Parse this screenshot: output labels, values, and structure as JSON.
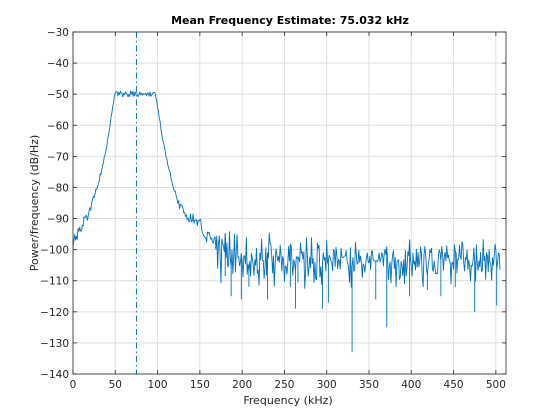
{
  "colors": {
    "series": "#0072bd",
    "grid": "#dfdfdf",
    "axis": "#262626",
    "background": "#ffffff"
  },
  "chart_data": {
    "type": "line",
    "title": "Mean Frequency Estimate: 75.032 kHz",
    "xlabel": "Frequency (kHz)",
    "ylabel": "Power/frequency (dB/Hz)",
    "xlim": [
      0,
      512
    ],
    "ylim": [
      -140,
      -30
    ],
    "xticks": [
      0,
      50,
      100,
      150,
      200,
      250,
      300,
      350,
      400,
      450,
      500
    ],
    "yticks": [
      -140,
      -130,
      -120,
      -110,
      -100,
      -90,
      -80,
      -70,
      -60,
      -50,
      -40,
      -30
    ],
    "grid": true,
    "box": true,
    "series": [
      {
        "x_start": 0,
        "x_step": 1,
        "values": [
          -99.08,
          -97.23,
          -95.15,
          -96.96,
          -95.67,
          -96.72,
          -93.17,
          -94.09,
          -92.79,
          -94.04,
          -94.05,
          -92.13,
          -92.41,
          -89.5,
          -89.79,
          -89.2,
          -88.99,
          -90.58,
          -89.23,
          -87.53,
          -86.52,
          -87.3,
          -85.14,
          -84.12,
          -82.83,
          -83.33,
          -82.23,
          -80.54,
          -80.71,
          -79.85,
          -78.59,
          -78.12,
          -75.64,
          -75.98,
          -74.39,
          -72.95,
          -72.04,
          -70.07,
          -69.43,
          -68.08,
          -66.74,
          -64.52,
          -63.22,
          -61.38,
          -59.75,
          -57.2,
          -56.0,
          -53.86,
          -52.68,
          -50.39,
          -49.62,
          -49.17,
          -49.14,
          -50.55,
          -49.43,
          -50.06,
          -49.04,
          -49.72,
          -49.75,
          -50.89,
          -49.69,
          -50.15,
          -49.28,
          -49.86,
          -49.99,
          -50.82,
          -50.06,
          -50.75,
          -49.05,
          -49.94,
          -49.15,
          -50.69,
          -49.21,
          -50.5,
          -49.38,
          -49.63,
          -50.02,
          -50.78,
          -50.16,
          -49.26,
          -50.19,
          -49.75,
          -50.3,
          -49.76,
          -50.04,
          -49.84,
          -49.81,
          -50.51,
          -49.69,
          -49.65,
          -50.59,
          -49.26,
          -50.66,
          -50.21,
          -49.84,
          -49.43,
          -49.53,
          -49.54,
          -51.05,
          -52.31,
          -54.39,
          -55.4,
          -57.8,
          -58.71,
          -61.36,
          -62.96,
          -64.71,
          -65.57,
          -66.89,
          -68.19,
          -70.27,
          -70.79,
          -72.71,
          -73.7,
          -74.73,
          -75.21,
          -77.18,
          -78.26,
          -79.34,
          -80.6,
          -81.19,
          -81.17,
          -82.79,
          -83.66,
          -85.11,
          -84.25,
          -86.86,
          -85.42,
          -85.59,
          -85.82,
          -86.6,
          -88.19,
          -88.04,
          -89.31,
          -88.79,
          -90.38,
          -89.73,
          -90.88,
          -90.95,
          -88.5,
          -91.03,
          -90.82,
          -88.46,
          -91.55,
          -90.5,
          -90.57,
          -90.29,
          -92.28,
          -90.59,
          -90.87,
          -90.28,
          -90.25,
          -93.08,
          -94.7,
          -95.06,
          -95.59,
          -96.17,
          -96.1,
          -97.61,
          -94.37,
          -94.76,
          -94.43,
          -95.49,
          -96.66,
          -96.26,
          -97.61,
          -97.91,
          -96.3,
          -95.89,
          -99.84,
          -95.63,
          -105.97,
          -98.13,
          -95.53,
          -102.0,
          -110.69,
          -96.51,
          -98.12,
          -98.94,
          -100.63,
          -94.83,
          -102.6,
          -97.82,
          -105.54,
          -104.98,
          -94.21,
          -102.64,
          -105.94,
          -99.93,
          -107.7,
          -102.33,
          -94.97,
          -107.18,
          -100.63,
          -95.16,
          -102.52,
          -102.3,
          -105.15,
          -103.92,
          -101.31,
          -103.75,
          -108.76,
          -102.05,
          -102.05,
          -104.58,
          -96.05,
          -107.92,
          -104.6,
          -106.81,
          -103.77,
          -108.46,
          -101.11,
          -102.84,
          -104.64,
          -108.24,
          -103.28,
          -104.99,
          -99.62,
          -107.61,
          -106.55,
          -111.44,
          -101.09,
          -103.24,
          -96.58,
          -103.47,
          -103.46,
          -109.27,
          -106.12,
          -99.38,
          -108.29,
          -101.04,
          -102.67,
          -94.62,
          -97.91,
          -98.5,
          -102.0,
          -107.51,
          -102.03,
          -111.77,
          -104.93,
          -99.73,
          -101.41,
          -103.55,
          -102.19,
          -104.08,
          -98.54,
          -101.79,
          -106.91,
          -102.2,
          -103.26,
          -110.22,
          -105.19,
          -105.46,
          -107.95,
          -104.23,
          -98.95,
          -103.56,
          -98.26,
          -98.81,
          -104.27,
          -108.29,
          -103.22,
          -104.27,
          -106.97,
          -102.34,
          -102.71,
          -102.24,
          -102.9,
          -103.91,
          -97.91,
          -101.24,
          -100.63,
          -103.08,
          -100.72,
          -112.45,
          -107.55,
          -96.19,
          -101.25,
          -108.55,
          -106.03,
          -102.43,
          -105.84,
          -96.13,
          -104.42,
          -102.88,
          -110.58,
          -104.0,
          -109.38,
          -109.69,
          -97.95,
          -99.57,
          -98.57,
          -108.76,
          -105.58,
          -111.17,
          -104.1,
          -101.0,
          -103.4,
          -102.51,
          -106.82,
          -97.02,
          -104.33,
          -103.22,
          -101.88,
          -102.51,
          -103.66,
          -104.19,
          -106.72,
          -99.91,
          -100.65,
          -105.43,
          -99.2,
          -102.05,
          -106.15,
          -103.11,
          -103.58,
          -106.34,
          -99.58,
          -102.42,
          -102.58,
          -102.38,
          -102.05,
          -101.92,
          -100.32,
          -103.33,
          -104.42,
          -106.29,
          -110.46,
          -99.34,
          -112.12,
          -105.39,
          -102.54,
          -106.96,
          -106.54,
          -97.63,
          -101.96,
          -104.68,
          -104.19,
          -100.16,
          -103.98,
          -102.12,
          -104.01,
          -109.0,
          -104.59,
          -104.95,
          -107.23,
          -104.88,
          -102.53,
          -101.06,
          -104.02,
          -104.21,
          -102.22,
          -106.38,
          -100.37,
          -100.5,
          -103.22,
          -103.57,
          -103.59,
          -104.0,
          -103.55,
          -103.79,
          -102.93,
          -100.99,
          -103.96,
          -103.08,
          -101.05,
          -101.31,
          -105.28,
          -101.32,
          -99.85,
          -101.72,
          -99.12,
          -103.18,
          -109.65,
          -105.54,
          -103.99,
          -110.69,
          -104.43,
          -101.49,
          -100.35,
          -106.13,
          -102.65,
          -111.91,
          -104.3,
          -103.48,
          -103.25,
          -109.54,
          -108.74,
          -103.75,
          -105.1,
          -108.29,
          -103.32,
          -110.97,
          -100.22,
          -108.41,
          -105.59,
          -100.68,
          -101.87,
          -96.83,
          -103.03,
          -105.19,
          -108.54,
          -101.12,
          -104.69,
          -103.72,
          -106.53,
          -99.88,
          -105.71,
          -100.96,
          -105.42,
          -103.95,
          -99.16,
          -101.41,
          -108.99,
          -111.96,
          -101.98,
          -99.03,
          -101.89,
          -106.32,
          -108.27,
          -104.87,
          -103.35,
          -99.95,
          -101.0,
          -99.56,
          -106.21,
          -107.02,
          -103.62,
          -105.66,
          -107.78,
          -107.59,
          -107.73,
          -102.35,
          -100.07,
          -100.89,
          -103.61,
          -98.98,
          -101.33,
          -106.64,
          -102.28,
          -100.92,
          -103.58,
          -98.76,
          -102.57,
          -101.77,
          -103.71,
          -104.02,
          -110.96,
          -104.3,
          -104.06,
          -106.25,
          -98.4,
          -100.47,
          -100.9,
          -107.49,
          -103.08,
          -103.23,
          -98.54,
          -102.23,
          -103.14,
          -97.4,
          -98.54,
          -104.1,
          -106.85,
          -102.53,
          -103.19,
          -100.23,
          -106.33,
          -103.37,
          -105.3,
          -110.03,
          -105.01,
          -105.33,
          -103.76,
          -99.42,
          -103.95,
          -110.1,
          -98.46,
          -104.56,
          -106.79,
          -103.6,
          -105.44,
          -100.85,
          -107.09,
          -106.76,
          -96.75,
          -103.5,
          -102.21,
          -109.54,
          -100.98,
          -101.94,
          -107.03,
          -99.99,
          -104.14,
          -104.58,
          -109.81,
          -102.58,
          -105.09,
          -102.18,
          -98.19,
          -100.23,
          -106.24,
          -104.38,
          -101.05,
          -101.47,
          -106.45
        ],
        "spikes": [
          {
            "x": 180,
            "y": -108.5
          },
          {
            "x": 187,
            "y": -115
          },
          {
            "x": 199,
            "y": -116
          },
          {
            "x": 208,
            "y": -112
          },
          {
            "x": 230,
            "y": -116
          },
          {
            "x": 257,
            "y": -112
          },
          {
            "x": 263,
            "y": -119
          },
          {
            "x": 266,
            "y": -110.5
          },
          {
            "x": 295,
            "y": -119
          },
          {
            "x": 302,
            "y": -117
          },
          {
            "x": 330,
            "y": -133
          },
          {
            "x": 358,
            "y": -116
          },
          {
            "x": 371,
            "y": -125
          },
          {
            "x": 398,
            "y": -115
          },
          {
            "x": 419,
            "y": -113
          },
          {
            "x": 435,
            "y": -115
          },
          {
            "x": 452,
            "y": -112
          },
          {
            "x": 475,
            "y": -120
          },
          {
            "x": 501,
            "y": -118
          }
        ]
      }
    ],
    "reference_line": {
      "x": 75.032,
      "style": "dash-dot"
    }
  }
}
